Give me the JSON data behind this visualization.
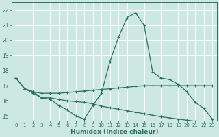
{
  "xlabel": "Humidex (Indice chaleur)",
  "ylabel": "",
  "xlim": [
    -0.5,
    23.5
  ],
  "ylim": [
    14.7,
    22.5
  ],
  "yticks": [
    15,
    16,
    17,
    18,
    19,
    20,
    21,
    22
  ],
  "xticks": [
    0,
    1,
    2,
    3,
    4,
    5,
    6,
    7,
    8,
    9,
    10,
    11,
    12,
    13,
    14,
    15,
    16,
    17,
    18,
    19,
    20,
    21,
    22,
    23
  ],
  "bg_color": "#cce8e0",
  "line_color": "#2a7060",
  "grid_color": "#ffffff",
  "lines": [
    {
      "x": [
        0,
        1,
        2,
        3,
        4,
        5,
        6,
        7,
        8,
        9,
        10,
        11,
        12,
        13,
        14,
        15,
        16,
        17,
        18,
        19,
        20,
        21,
        22,
        23
      ],
      "y": [
        17.5,
        16.8,
        16.6,
        16.2,
        16.1,
        15.7,
        15.4,
        15.0,
        14.8,
        15.7,
        16.5,
        18.6,
        20.2,
        21.5,
        21.8,
        21.0,
        17.9,
        17.5,
        17.4,
        17.1,
        16.6,
        15.9,
        15.5,
        14.8
      ]
    },
    {
      "x": [
        0,
        1,
        2,
        3,
        4,
        5,
        6,
        7,
        8,
        9,
        10,
        11,
        12,
        13,
        14,
        15,
        16,
        17,
        18,
        19,
        20,
        21,
        22,
        23
      ],
      "y": [
        17.5,
        16.8,
        16.6,
        16.5,
        16.5,
        16.5,
        16.55,
        16.6,
        16.65,
        16.7,
        16.75,
        16.8,
        16.85,
        16.9,
        16.95,
        17.0,
        17.0,
        17.0,
        17.0,
        17.0,
        17.0,
        17.0,
        17.0,
        17.0
      ]
    },
    {
      "x": [
        0,
        1,
        2,
        3,
        4,
        5,
        6,
        7,
        8,
        9,
        10,
        11,
        12,
        13,
        14,
        15,
        16,
        17,
        18,
        19,
        20,
        21,
        22,
        23
      ],
      "y": [
        17.5,
        16.8,
        16.5,
        16.2,
        16.2,
        16.1,
        16.0,
        15.95,
        15.9,
        15.8,
        15.65,
        15.55,
        15.45,
        15.35,
        15.25,
        15.15,
        15.05,
        14.95,
        14.88,
        14.8,
        14.73,
        14.66,
        14.6,
        14.55
      ]
    }
  ]
}
